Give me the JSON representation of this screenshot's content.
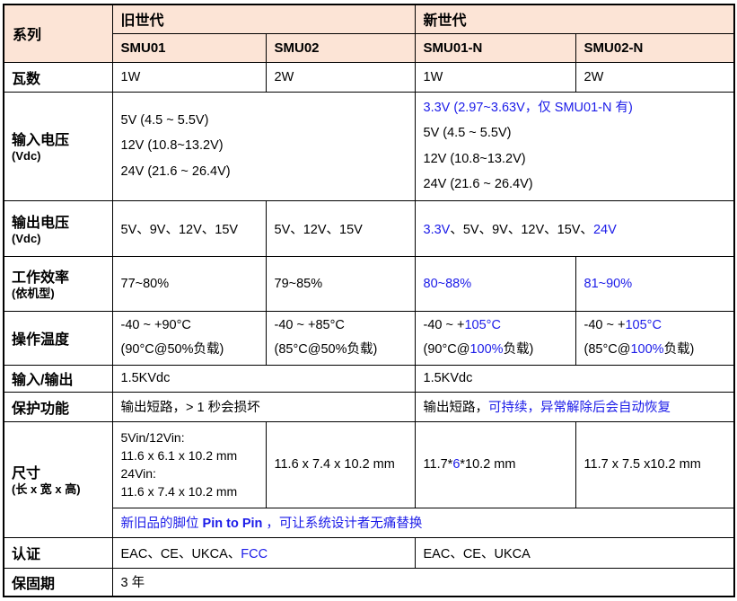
{
  "colors": {
    "accent_blue": "#1b1be8",
    "header_bg": "#fce4d6",
    "border": "#000000"
  },
  "header": {
    "series_label": "系列",
    "old_gen_label": "旧世代",
    "new_gen_label": "新世代",
    "models": {
      "smu01": "SMU01",
      "smu02": "SMU02",
      "smu01n": "SMU01-N",
      "smu02n": "SMU02-N"
    }
  },
  "rows": {
    "wattage": {
      "label": "瓦数",
      "smu01": "1W",
      "smu02": "2W",
      "smu01n": "1W",
      "smu02n": "2W"
    },
    "input_voltage": {
      "label": "输入电压",
      "sublabel": "(Vdc)",
      "old": [
        {
          "t": "5V (4.5 ~ 5.5V)"
        },
        {
          "t": "12V (10.8~13.2V)",
          "nl": true
        },
        {
          "t": "24V (21.6 ~ 26.4V)",
          "nl": true
        }
      ],
      "new": [
        {
          "t": "3.3V (2.97~3.63V，仅 SMU01-N 有)",
          "c": true
        },
        {
          "t": "5V (4.5 ~ 5.5V)",
          "nl": true
        },
        {
          "t": "12V (10.8~13.2V)",
          "nl": true
        },
        {
          "t": "24V (21.6 ~ 26.4V)",
          "nl": true
        }
      ]
    },
    "output_voltage": {
      "label": "输出电压",
      "sublabel": "(Vdc)",
      "smu01": "5V、9V、12V、15V",
      "smu02": "5V、12V、15V",
      "new": [
        {
          "t": "3.3V",
          "c": true
        },
        {
          "t": "、5V、9V、12V、15V、"
        },
        {
          "t": "24V",
          "c": true
        }
      ]
    },
    "efficiency": {
      "label": "工作效率",
      "sublabel": "(依机型)",
      "smu01": "77~80%",
      "smu02": "79~85%",
      "smu01n": [
        {
          "t": "80~88%",
          "c": true
        }
      ],
      "smu02n": [
        {
          "t": "81~90%",
          "c": true
        }
      ]
    },
    "temperature": {
      "label": "操作温度",
      "smu01": [
        {
          "t": "-40 ~ +90°C"
        },
        {
          "t": "(90°C@50%负载)",
          "nl": true
        }
      ],
      "smu02": [
        {
          "t": "-40 ~ +85°C"
        },
        {
          "t": "(85°C@50%负载)",
          "nl": true
        }
      ],
      "smu01n": [
        {
          "t": "-40 ~ +"
        },
        {
          "t": "105°C",
          "c": true
        },
        {
          "t": "(90°C@",
          "nl": true
        },
        {
          "t": "100%",
          "c": true
        },
        {
          "t": "负载)"
        }
      ],
      "smu02n": [
        {
          "t": "-40 ~ +"
        },
        {
          "t": "105°C",
          "c": true
        },
        {
          "t": "(85°C@",
          "nl": true
        },
        {
          "t": "100%",
          "c": true
        },
        {
          "t": "负载)"
        }
      ]
    },
    "isolation": {
      "label": "输入/输出",
      "old": "1.5KVdc",
      "new": "1.5KVdc"
    },
    "protection": {
      "label": "保护功能",
      "old": [
        {
          "t": "输出短路，> 1 秒会损坏"
        }
      ],
      "new": [
        {
          "t": "输出短路，"
        },
        {
          "t": "可持续，异常解除后会自动恢复",
          "c": true
        }
      ]
    },
    "dimensions": {
      "label": "尺寸",
      "sublabel": "(长 x 宽 x 高)",
      "smu01": [
        {
          "t": "5Vin/12Vin:"
        },
        {
          "t": "11.6 x 6.1 x 10.2 mm",
          "nl": true
        },
        {
          "t": "24Vin:",
          "nl": true
        },
        {
          "t": "11.6 x 7.4 x 10.2 mm",
          "nl": true
        }
      ],
      "smu02": "11.6 x 7.4 x 10.2 mm",
      "smu01n": [
        {
          "t": "11.7*"
        },
        {
          "t": "6",
          "c": true
        },
        {
          "t": "*10.2 mm"
        }
      ],
      "smu02n": "11.7 x 7.5 x10.2 mm",
      "note": [
        {
          "t": "新旧品的脚位 ",
          "c": true
        },
        {
          "t": "Pin to Pin",
          "c": true,
          "b": true
        },
        {
          "t": " ，可让系统设计者无痛替换",
          "c": true
        }
      ]
    },
    "certification": {
      "label": "认证",
      "old": [
        {
          "t": "EAC、CE、UKCA、"
        },
        {
          "t": "FCC",
          "c": true
        }
      ],
      "new": "EAC、CE、UKCA"
    },
    "warranty": {
      "label": "保固期",
      "value": "3 年"
    }
  }
}
